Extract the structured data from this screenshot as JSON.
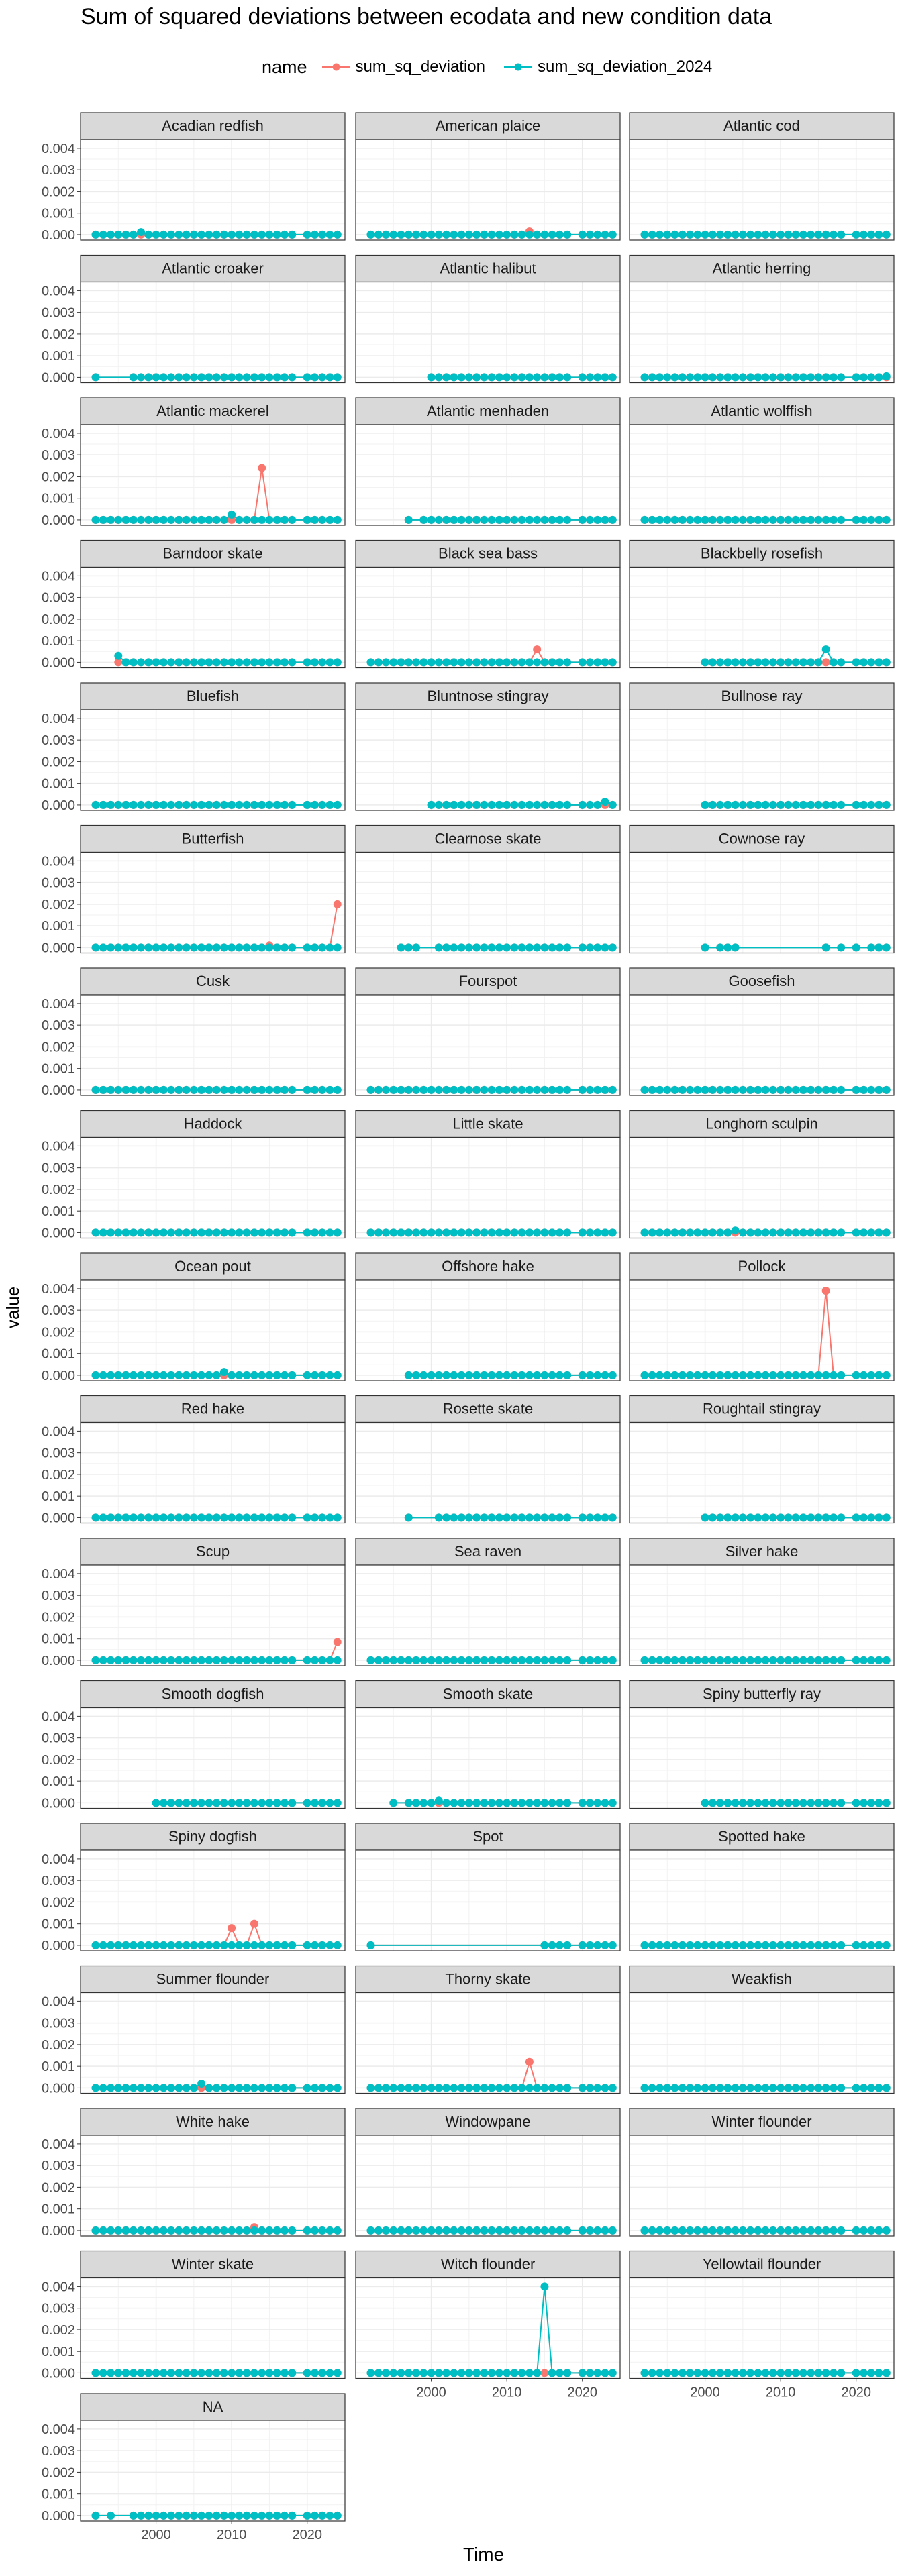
{
  "chart_data": {
    "type": "line",
    "title": "Sum of squared deviations between ecodata and new condition data",
    "xlabel": "Time",
    "ylabel": "value",
    "legend": {
      "title": "name",
      "position": "top"
    },
    "series_meta": [
      {
        "name": "sum_sq_deviation",
        "color": "#F8766D"
      },
      {
        "name": "sum_sq_deviation_2024",
        "color": "#00BFC4"
      }
    ],
    "facet_layout": {
      "columns": 3,
      "rows": 17
    },
    "xlim": [
      1990,
      2025
    ],
    "ylim": [
      -0.00025,
      0.0044
    ],
    "xticks": [
      2000,
      2010,
      2020
    ],
    "yticks": [
      0,
      0.001,
      0.002,
      0.003,
      0.004
    ],
    "ytick_labels": [
      "0.000",
      "0.001",
      "0.002",
      "0.003",
      "0.004"
    ],
    "grid": true,
    "panels": [
      {
        "label": "Acadian redfish",
        "start": 1992,
        "missing": [
          2019
        ],
        "peaks2024": {
          "1998": 0.00012
        },
        "peaks": {}
      },
      {
        "label": "American plaice",
        "start": 1992,
        "missing": [
          2019
        ],
        "peaks2024": {},
        "peaks": {
          "2013": 0.00015
        }
      },
      {
        "label": "Atlantic cod",
        "start": 1992,
        "missing": [
          2019
        ],
        "peaks2024": {},
        "peaks": {}
      },
      {
        "label": "Atlantic croaker",
        "start": 1992,
        "missing": [
          1993,
          1994,
          1995,
          1996,
          2019
        ],
        "peaks2024": {},
        "peaks": {}
      },
      {
        "label": "Atlantic halibut",
        "start": 2000,
        "missing": [
          2019
        ],
        "peaks2024": {},
        "peaks": {}
      },
      {
        "label": "Atlantic herring",
        "start": 1992,
        "missing": [
          2019
        ],
        "peaks2024": {
          "2024": 5e-05
        },
        "peaks": {}
      },
      {
        "label": "Atlantic mackerel",
        "start": 1992,
        "missing": [
          2019
        ],
        "peaks2024": {
          "2010": 0.00025
        },
        "peaks": {
          "2014": 0.0024
        }
      },
      {
        "label": "Atlantic menhaden",
        "start": 1997,
        "missing": [
          1998,
          2019
        ],
        "peaks2024": {},
        "peaks": {}
      },
      {
        "label": "Atlantic wolffish",
        "start": 1992,
        "missing": [
          2019
        ],
        "peaks2024": {},
        "peaks": {}
      },
      {
        "label": "Barndoor skate",
        "start": 1995,
        "missing": [
          2019
        ],
        "peaks2024": {
          "1995": 0.0003
        },
        "peaks": {}
      },
      {
        "label": "Black sea bass",
        "start": 1992,
        "missing": [
          2019
        ],
        "peaks2024": {},
        "peaks": {
          "2014": 0.0006
        }
      },
      {
        "label": "Blackbelly rosefish",
        "start": 2000,
        "missing": [
          2019
        ],
        "peaks2024": {
          "2016": 0.0006
        },
        "peaks": {}
      },
      {
        "label": "Bluefish",
        "start": 1992,
        "missing": [
          2019
        ],
        "peaks2024": {},
        "peaks": {}
      },
      {
        "label": "Bluntnose stingray",
        "start": 2000,
        "missing": [
          2019
        ],
        "peaks2024": {
          "2023": 0.00015
        },
        "peaks": {}
      },
      {
        "label": "Bullnose ray",
        "start": 2000,
        "missing": [
          2019
        ],
        "peaks2024": {},
        "peaks": {}
      },
      {
        "label": "Butterfish",
        "start": 1992,
        "missing": [
          2019
        ],
        "peaks2024": {},
        "peaks": {
          "2024": 0.002,
          "2015": 0.0001
        }
      },
      {
        "label": "Clearnose skate",
        "start": 1996,
        "missing": [
          1999,
          2000,
          2019
        ],
        "peaks2024": {},
        "peaks": {}
      },
      {
        "label": "Cownose ray",
        "start": 2000,
        "missing": [
          2001,
          2005,
          2006,
          2007,
          2008,
          2009,
          2010,
          2011,
          2012,
          2013,
          2014,
          2015,
          2017,
          2019,
          2021
        ],
        "peaks2024": {},
        "peaks": {}
      },
      {
        "label": "Cusk",
        "start": 1992,
        "missing": [
          2019
        ],
        "peaks2024": {},
        "peaks": {}
      },
      {
        "label": "Fourspot",
        "start": 1992,
        "missing": [
          2019
        ],
        "peaks2024": {},
        "peaks": {}
      },
      {
        "label": "Goosefish",
        "start": 1992,
        "missing": [
          2019
        ],
        "peaks2024": {},
        "peaks": {}
      },
      {
        "label": "Haddock",
        "start": 1992,
        "missing": [
          2019
        ],
        "peaks2024": {},
        "peaks": {}
      },
      {
        "label": "Little skate",
        "start": 1992,
        "missing": [
          2019
        ],
        "peaks2024": {},
        "peaks": {}
      },
      {
        "label": "Longhorn sculpin",
        "start": 1992,
        "missing": [
          2019
        ],
        "peaks2024": {
          "2004": 0.0001
        },
        "peaks": {}
      },
      {
        "label": "Ocean pout",
        "start": 1992,
        "missing": [
          2019
        ],
        "peaks2024": {
          "2009": 0.00015
        },
        "peaks": {}
      },
      {
        "label": "Offshore hake",
        "start": 1997,
        "missing": [
          2019
        ],
        "peaks2024": {},
        "peaks": {}
      },
      {
        "label": "Pollock",
        "start": 1992,
        "missing": [
          2019
        ],
        "peaks2024": {},
        "peaks": {
          "2016": 0.0039
        }
      },
      {
        "label": "Red hake",
        "start": 1992,
        "missing": [
          2019
        ],
        "peaks2024": {},
        "peaks": {}
      },
      {
        "label": "Rosette skate",
        "start": 1997,
        "missing": [
          1998,
          1999,
          2000,
          2019
        ],
        "peaks2024": {},
        "peaks": {}
      },
      {
        "label": "Roughtail stingray",
        "start": 2000,
        "missing": [
          2019
        ],
        "peaks2024": {},
        "peaks": {}
      },
      {
        "label": "Scup",
        "start": 1992,
        "missing": [
          2019
        ],
        "peaks2024": {},
        "peaks": {
          "2024": 0.00085
        }
      },
      {
        "label": "Sea raven",
        "start": 1992,
        "missing": [
          2019
        ],
        "peaks2024": {},
        "peaks": {}
      },
      {
        "label": "Silver hake",
        "start": 1992,
        "missing": [
          2019
        ],
        "peaks2024": {},
        "peaks": {}
      },
      {
        "label": "Smooth dogfish",
        "start": 2000,
        "missing": [
          2019
        ],
        "peaks2024": {},
        "peaks": {}
      },
      {
        "label": "Smooth skate",
        "start": 1995,
        "missing": [
          1996,
          2019
        ],
        "peaks2024": {
          "2001": 0.0001
        },
        "peaks": {}
      },
      {
        "label": "Spiny butterfly ray",
        "start": 2000,
        "missing": [
          2019
        ],
        "peaks2024": {},
        "peaks": {}
      },
      {
        "label": "Spiny dogfish",
        "start": 1992,
        "missing": [
          2019
        ],
        "peaks2024": {},
        "peaks": {
          "2010": 0.0008,
          "2013": 0.001
        }
      },
      {
        "label": "Spot",
        "start": 1992,
        "missing": [
          1993,
          1994,
          1995,
          1996,
          1997,
          1998,
          1999,
          2000,
          2001,
          2002,
          2003,
          2004,
          2005,
          2006,
          2007,
          2008,
          2009,
          2010,
          2011,
          2012,
          2013,
          2014,
          2019
        ],
        "peaks2024": {},
        "peaks": {}
      },
      {
        "label": "Spotted hake",
        "start": 1992,
        "missing": [
          2019
        ],
        "peaks2024": {},
        "peaks": {}
      },
      {
        "label": "Summer flounder",
        "start": 1992,
        "missing": [
          2019
        ],
        "peaks2024": {
          "2006": 0.0002
        },
        "peaks": {}
      },
      {
        "label": "Thorny skate",
        "start": 1992,
        "missing": [
          2019
        ],
        "peaks2024": {},
        "peaks": {
          "2013": 0.0012
        }
      },
      {
        "label": "Weakfish",
        "start": 1992,
        "missing": [
          2019
        ],
        "peaks2024": {},
        "peaks": {}
      },
      {
        "label": "White hake",
        "start": 1992,
        "missing": [
          2019
        ],
        "peaks2024": {},
        "peaks": {
          "2013": 0.00015
        }
      },
      {
        "label": "Windowpane",
        "start": 1992,
        "missing": [
          2019
        ],
        "peaks2024": {},
        "peaks": {}
      },
      {
        "label": "Winter flounder",
        "start": 1992,
        "missing": [
          2019
        ],
        "peaks2024": {},
        "peaks": {}
      },
      {
        "label": "Winter skate",
        "start": 1992,
        "missing": [
          2019
        ],
        "peaks2024": {},
        "peaks": {}
      },
      {
        "label": "Witch flounder",
        "start": 1992,
        "missing": [
          2019
        ],
        "peaks2024": {
          "2015": 0.004
        },
        "peaks": {}
      },
      {
        "label": "Yellowtail flounder",
        "start": 1992,
        "missing": [
          2019
        ],
        "peaks2024": {},
        "peaks": {}
      },
      {
        "label": "NA",
        "start": 1992,
        "missing": [
          1993,
          1995,
          1996,
          2019
        ],
        "peaks2024": {},
        "peaks": {}
      }
    ]
  }
}
